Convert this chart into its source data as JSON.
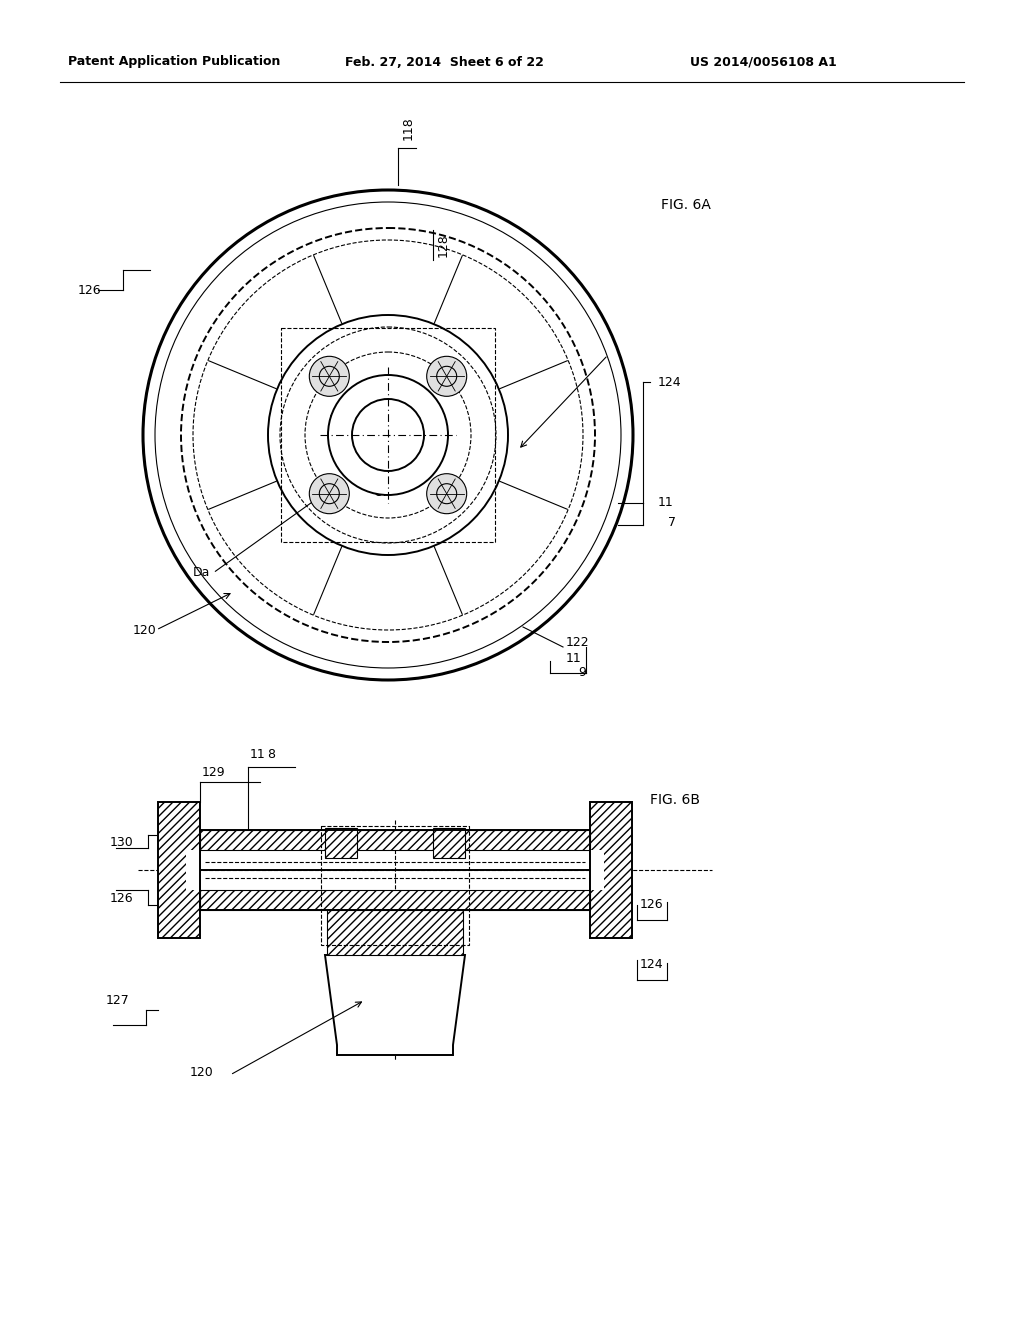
{
  "title_left": "Patent Application Publication",
  "title_mid": "Feb. 27, 2014  Sheet 6 of 22",
  "title_right": "US 2014/0056108 A1",
  "fig6a_label": "FIG. 6A",
  "fig6b_label": "FIG. 6B",
  "background": "#ffffff",
  "line_color": "#000000"
}
